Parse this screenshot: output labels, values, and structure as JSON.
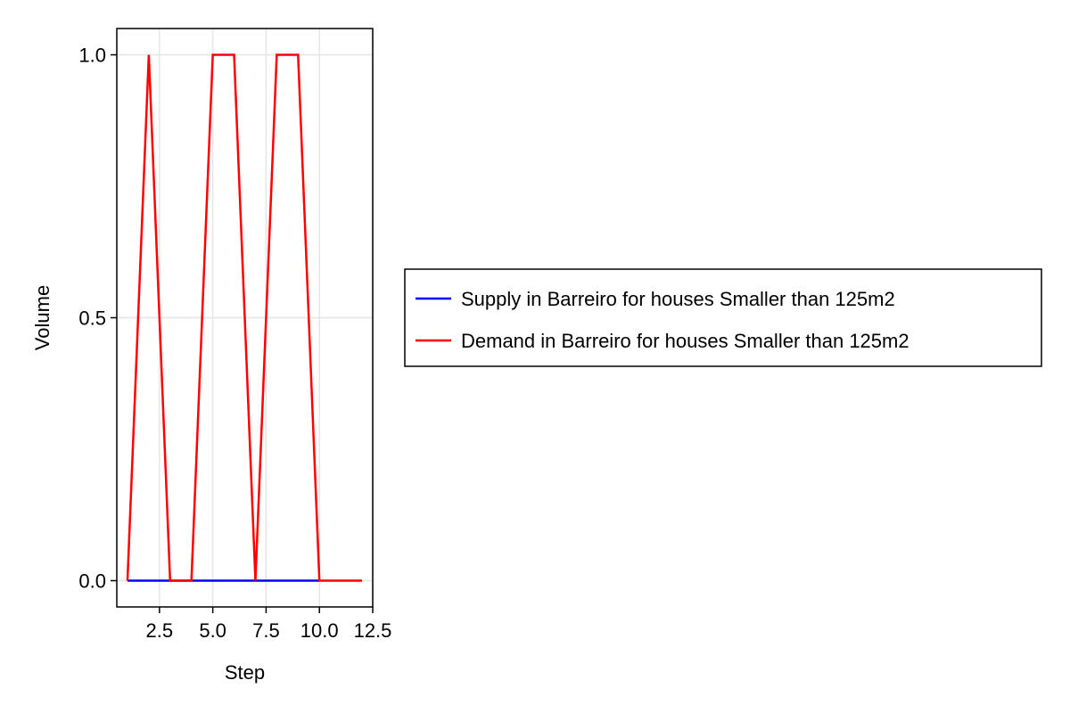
{
  "chart_data": {
    "type": "line",
    "xlabel": "Step",
    "ylabel": "Volume",
    "xlim": [
      0.5,
      12.5
    ],
    "ylim": [
      -0.05,
      1.05
    ],
    "xticks": [
      2.5,
      5.0,
      7.5,
      10.0,
      12.5
    ],
    "xtick_labels": [
      "2.5",
      "5.0",
      "7.5",
      "10.0",
      "12.5"
    ],
    "yticks": [
      0.0,
      0.5,
      1.0
    ],
    "ytick_labels": [
      "0.0",
      "0.5",
      "1.0"
    ],
    "grid": true,
    "legend_position": "right",
    "series": [
      {
        "name": "Supply in Barreiro for houses Smaller than 125m2",
        "color": "#0000ff",
        "x": [
          1,
          2,
          3,
          4,
          5,
          6,
          7,
          8,
          9,
          10
        ],
        "y": [
          0,
          0,
          0,
          0,
          0,
          0,
          0,
          0,
          0,
          0
        ]
      },
      {
        "name": "Demand in Barreiro for houses Smaller than 125m2",
        "color": "#ff0000",
        "x": [
          1,
          2,
          3,
          4,
          5,
          6,
          7,
          8,
          9,
          10,
          11,
          12
        ],
        "y": [
          0,
          1,
          0,
          0,
          1,
          1,
          0,
          1,
          1,
          0,
          0,
          0
        ]
      }
    ]
  }
}
